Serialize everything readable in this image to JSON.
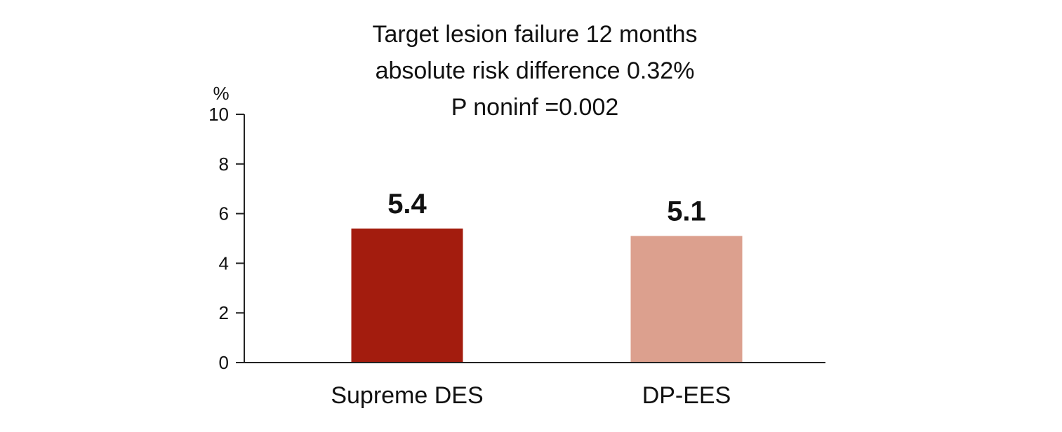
{
  "chart_data": {
    "type": "bar",
    "title": [
      "Target lesion failure 12 months",
      "absolute risk difference 0.32%",
      "P noninf =0.002"
    ],
    "xlabel": "",
    "ylabel": "%",
    "ylim": [
      0,
      10
    ],
    "yticks": [
      0,
      2,
      4,
      6,
      8,
      10
    ],
    "categories": [
      "Supreme DES",
      "DP-EES"
    ],
    "values": [
      5.4,
      5.1
    ],
    "value_labels": [
      "5.4",
      "5.1"
    ],
    "colors": [
      "#A31C0E",
      "#DCA08E"
    ],
    "grid": false,
    "legend": "none"
  }
}
